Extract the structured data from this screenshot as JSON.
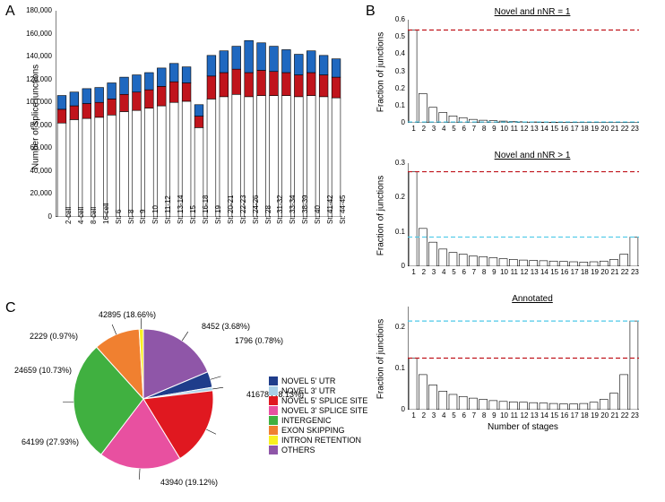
{
  "panelA": {
    "label": "A",
    "ylabel": "Number of splice junctions",
    "ylim": [
      0,
      180000
    ],
    "ytick_step": 20000,
    "yticks": [
      "0",
      "20,000",
      "40,000",
      "60,000",
      "80,000",
      "100,000",
      "120,000",
      "140,000",
      "160,000",
      "180,000"
    ],
    "categories": [
      "2-cell",
      "4-cell",
      "8-cell",
      "16-cell",
      "St. 6",
      "St. 8",
      "St. 9",
      "St. 10",
      "St. 11-12",
      "St. 13-14",
      "St. 15",
      "St. 16-18",
      "St. 19",
      "St. 20-21",
      "St. 22-23",
      "St. 24-26",
      "St. 28",
      "St. 31-32",
      "St. 33-34",
      "St. 38-39",
      "St. 40",
      "St. 41-42",
      "St. 44-45"
    ],
    "series": [
      {
        "name": "white",
        "color": "#ffffff",
        "border": "#000000",
        "values": [
          82000,
          85000,
          86000,
          87000,
          89000,
          92000,
          93000,
          95000,
          97000,
          100000,
          101000,
          78000,
          103000,
          105000,
          107000,
          105000,
          106000,
          106000,
          106000,
          105000,
          106000,
          105000,
          104000
        ]
      },
      {
        "name": "red",
        "color": "#c0141c",
        "border": "#000000",
        "values": [
          12000,
          12000,
          13000,
          13000,
          14000,
          15000,
          16000,
          16000,
          17000,
          18000,
          16000,
          10000,
          20000,
          21000,
          22000,
          21000,
          22000,
          21000,
          20000,
          19000,
          20000,
          19000,
          18000
        ]
      },
      {
        "name": "blue",
        "color": "#1f68c0",
        "border": "#000000",
        "values": [
          12000,
          12000,
          13000,
          13000,
          14000,
          15000,
          15000,
          15000,
          16000,
          16000,
          14000,
          10000,
          18000,
          19000,
          20000,
          28000,
          24000,
          22000,
          20000,
          18000,
          19000,
          17000,
          16000
        ]
      }
    ]
  },
  "panelB": {
    "label": "B",
    "xlabel": "Number of stages",
    "ylabel": "Fraction of junctions",
    "xticks": [
      "1",
      "2",
      "3",
      "4",
      "5",
      "6",
      "7",
      "8",
      "9",
      "10",
      "11",
      "12",
      "13",
      "14",
      "15",
      "16",
      "17",
      "18",
      "19",
      "20",
      "21",
      "22",
      "23"
    ],
    "charts": [
      {
        "title": "Novel and nNR = 1",
        "ylim": [
          0,
          0.6
        ],
        "yticks": [
          "0",
          "0.1",
          "0.2",
          "0.3",
          "0.4",
          "0.5",
          "0.6"
        ],
        "red_line": 0.54,
        "blue_line": 0.005,
        "values": [
          0.54,
          0.17,
          0.09,
          0.06,
          0.04,
          0.03,
          0.02,
          0.015,
          0.012,
          0.01,
          0.008,
          0.006,
          0.005,
          0.004,
          0.003,
          0.002,
          0.002,
          0.001,
          0.001,
          0.001,
          0.001,
          0.001,
          0.001
        ]
      },
      {
        "title": "Novel and nNR > 1",
        "ylim": [
          0,
          0.3
        ],
        "yticks": [
          "0",
          "0.1",
          "0.2",
          "0.3"
        ],
        "red_line": 0.275,
        "blue_line": 0.085,
        "values": [
          0.275,
          0.11,
          0.07,
          0.05,
          0.04,
          0.035,
          0.03,
          0.028,
          0.025,
          0.022,
          0.02,
          0.018,
          0.017,
          0.016,
          0.015,
          0.014,
          0.013,
          0.012,
          0.013,
          0.015,
          0.02,
          0.035,
          0.085
        ]
      },
      {
        "title": "Annotated",
        "ylim": [
          0,
          0.25
        ],
        "yticks": [
          "0",
          "0.1",
          "0.2"
        ],
        "red_line": 0.125,
        "blue_line": 0.215,
        "values": [
          0.125,
          0.085,
          0.06,
          0.045,
          0.037,
          0.032,
          0.028,
          0.025,
          0.022,
          0.02,
          0.019,
          0.018,
          0.017,
          0.016,
          0.015,
          0.014,
          0.014,
          0.015,
          0.018,
          0.025,
          0.04,
          0.085,
          0.215
        ]
      }
    ],
    "bar_color": "#ffffff",
    "bar_border": "#000000",
    "red_color": "#c0141c",
    "blue_color": "#4dc9e8"
  },
  "panelC": {
    "label": "C",
    "slices": [
      {
        "label": "42895 (18.66%)",
        "pct": 18.66,
        "color": "#8f56a8",
        "legend": "OTHERS"
      },
      {
        "label": "8452 (3.68%)",
        "pct": 3.68,
        "color": "#1f3d8b",
        "legend": "NOVEL 5' UTR"
      },
      {
        "label": "1796 (0.78%)",
        "pct": 0.78,
        "color": "#a8d0e8",
        "legend": "NOVEL 3' UTR"
      },
      {
        "label": "41678 (18.13%)",
        "pct": 18.13,
        "color": "#e01820",
        "legend": "NOVEL 5' SPLICE SITE"
      },
      {
        "label": "43940 (19.12%)",
        "pct": 19.12,
        "color": "#e850a0",
        "legend": "NOVEL 3' SPLICE SITE"
      },
      {
        "label": "64199 (27.93%)",
        "pct": 27.93,
        "color": "#40b040",
        "legend": "INTERGENIC"
      },
      {
        "label": "24659 (10.73%)",
        "pct": 10.73,
        "color": "#f08030",
        "legend": "EXON SKIPPING"
      },
      {
        "label": "2229 (0.97%)",
        "pct": 0.97,
        "color": "#f8f020",
        "legend": "INTRON RETENTION"
      }
    ]
  }
}
